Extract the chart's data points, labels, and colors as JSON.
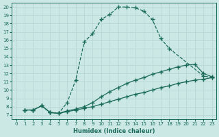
{
  "xlabel": "Humidex (Indice chaleur)",
  "bg_color": "#cce8e5",
  "line_color": "#1a6b5a",
  "grid_color": "#b8d8d5",
  "xlim": [
    -0.5,
    23.5
  ],
  "ylim": [
    6.5,
    20.5
  ],
  "xticks": [
    0,
    1,
    2,
    3,
    4,
    5,
    6,
    7,
    8,
    9,
    10,
    11,
    12,
    13,
    14,
    15,
    16,
    17,
    18,
    19,
    20,
    21,
    22,
    23
  ],
  "yticks": [
    7,
    8,
    9,
    10,
    11,
    12,
    13,
    14,
    15,
    16,
    17,
    18,
    19,
    20
  ],
  "bell_x": [
    1,
    2,
    3,
    4,
    5,
    6,
    7,
    8,
    9,
    10,
    11,
    12,
    13,
    14,
    15,
    16,
    17,
    18,
    22,
    23
  ],
  "bell_y": [
    7.6,
    7.6,
    8.1,
    7.3,
    7.2,
    8.5,
    11.2,
    15.8,
    16.8,
    18.5,
    19.1,
    20.0,
    20.0,
    19.9,
    19.5,
    18.5,
    16.2,
    15.0,
    11.7,
    11.5
  ],
  "mid_x": [
    1,
    2,
    3,
    4,
    5,
    6,
    7,
    8,
    9,
    10,
    11,
    12,
    13,
    14,
    15,
    16,
    17,
    18,
    19,
    20,
    21,
    22,
    23
  ],
  "mid_y": [
    7.6,
    7.6,
    8.1,
    7.3,
    7.2,
    7.5,
    7.7,
    8.0,
    8.5,
    9.2,
    9.8,
    10.3,
    10.8,
    11.2,
    11.5,
    11.9,
    12.2,
    12.5,
    12.8,
    13.0,
    13.1,
    12.0,
    11.6
  ],
  "low_x": [
    1,
    2,
    3,
    4,
    5,
    6,
    7,
    8,
    9,
    10,
    11,
    12,
    13,
    14,
    15,
    16,
    17,
    18,
    19,
    20,
    21,
    22,
    23
  ],
  "low_y": [
    7.6,
    7.6,
    8.1,
    7.3,
    7.2,
    7.4,
    7.6,
    7.8,
    8.0,
    8.3,
    8.6,
    8.9,
    9.2,
    9.5,
    9.7,
    10.0,
    10.3,
    10.5,
    10.8,
    11.0,
    11.2,
    11.3,
    11.5
  ]
}
